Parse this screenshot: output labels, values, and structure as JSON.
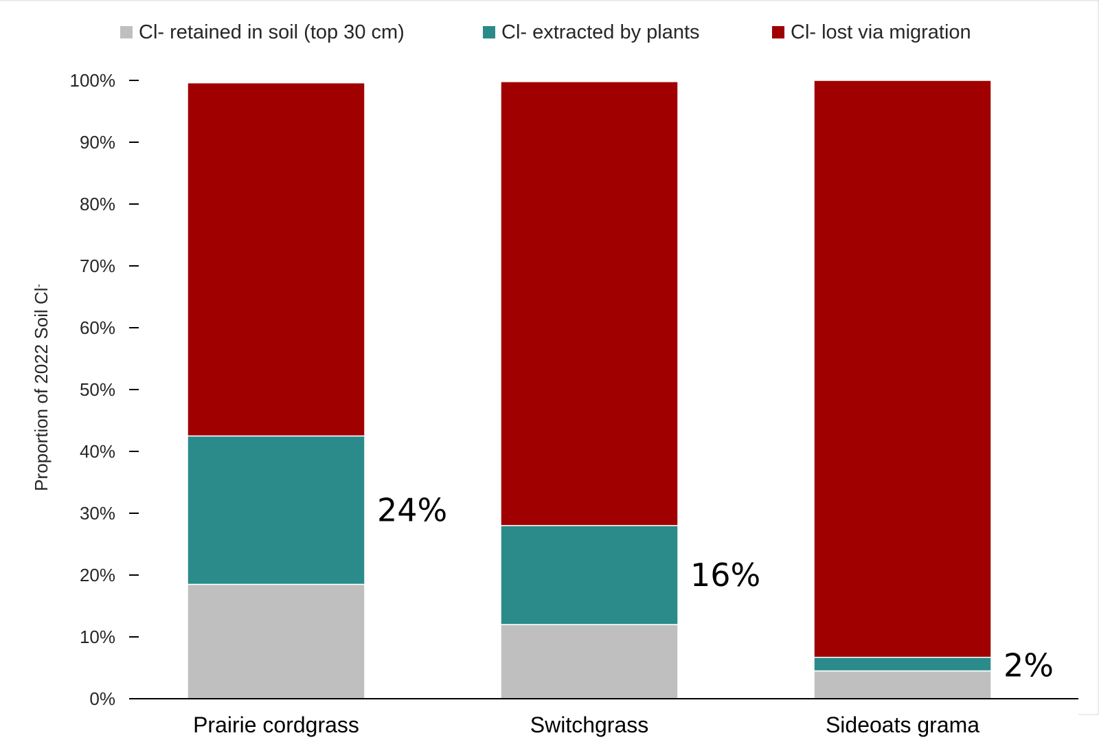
{
  "chart_data": {
    "type": "bar",
    "stacked": true,
    "categories": [
      "Prairie cordgrass",
      "Switchgrass",
      "Sideoats grama"
    ],
    "series": [
      {
        "name": "Cl- retained in soil (top 30 cm)",
        "color": "#bfbfbf",
        "values": [
          18.5,
          12.0,
          4.5
        ]
      },
      {
        "name": "Cl- extracted by plants",
        "color": "#2a8b8a",
        "values": [
          24.0,
          16.0,
          2.2
        ]
      },
      {
        "name": "Cl- lost via migration",
        "color": "#a00000",
        "values": [
          57.1,
          71.8,
          93.3
        ]
      }
    ],
    "annotations": [
      "24%",
      "16%",
      "2%"
    ],
    "ylabel": "Proportion of 2022  Soil Cl",
    "ylabel_sup": "-",
    "xlabel": "",
    "ylim": [
      0,
      100
    ],
    "yticks": [
      "0%",
      "10%",
      "20%",
      "30%",
      "40%",
      "50%",
      "60%",
      "70%",
      "80%",
      "90%",
      "100%"
    ],
    "legend_position": "top"
  }
}
